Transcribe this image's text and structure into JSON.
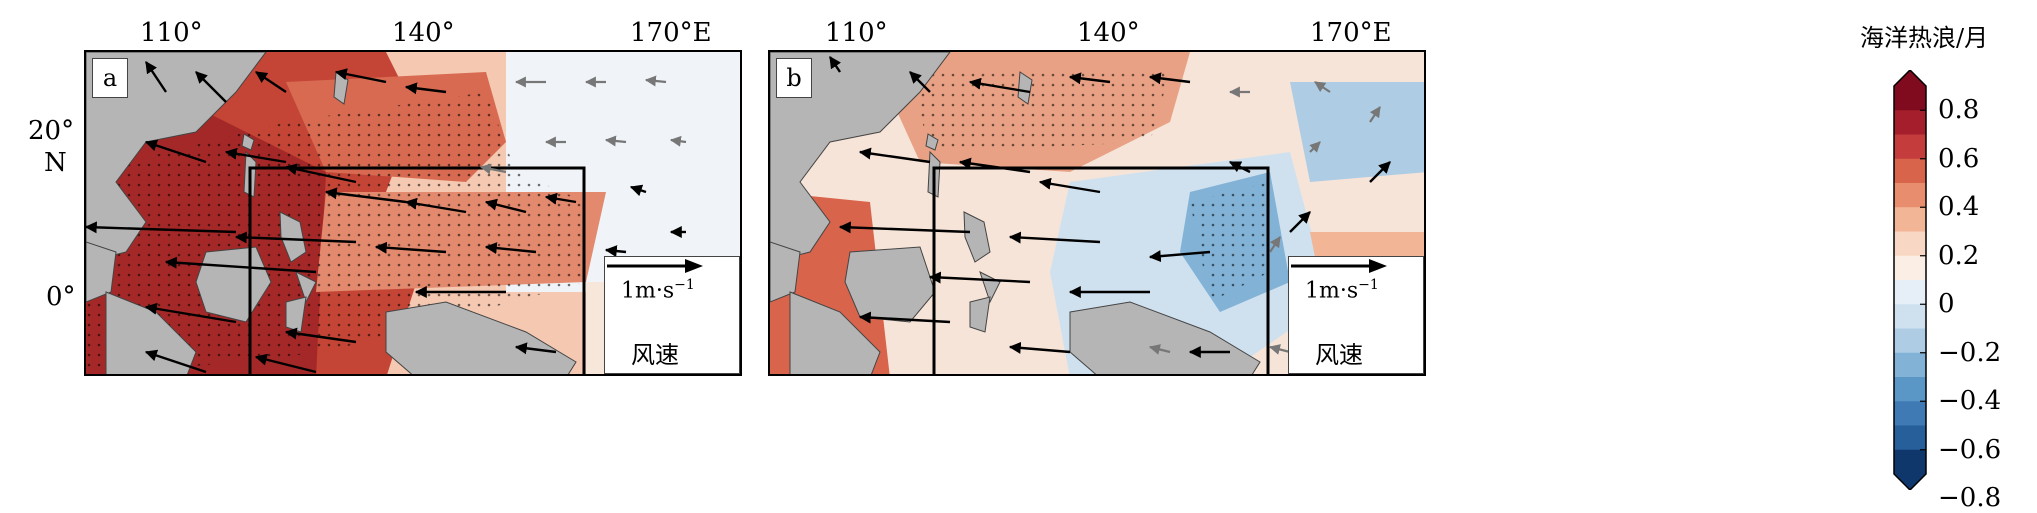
{
  "panels": [
    {
      "label": "a",
      "lon_ticks": [
        "110°",
        "140°",
        "170°E"
      ],
      "lat_ticks": [
        "20°",
        "0°"
      ],
      "lat_unit": "N",
      "reference_vector": {
        "speed": "1m·s",
        "exponent": "−1",
        "label": "风速"
      }
    },
    {
      "label": "b",
      "lon_ticks": [
        "110°",
        "140°",
        "170°E"
      ],
      "reference_vector": {
        "speed": "1m·s",
        "exponent": "−1",
        "label": "风速"
      }
    }
  ],
  "colorbar": {
    "title": "海洋热浪/月",
    "ticks": [
      "0.8",
      "0.6",
      "0.4",
      "0.2",
      "0",
      "−0.2",
      "−0.4",
      "−0.6",
      "−0.8"
    ],
    "colors": [
      "#800a1e",
      "#a51e2b",
      "#c43c3c",
      "#d9644c",
      "#e88e6e",
      "#f2b596",
      "#f8d8c4",
      "#fbeee4",
      "#e6eff7",
      "#cfe1ef",
      "#aecde4",
      "#82b2d6",
      "#5b97c6",
      "#3f7ab5",
      "#265f9a",
      "#10376b"
    ]
  }
}
